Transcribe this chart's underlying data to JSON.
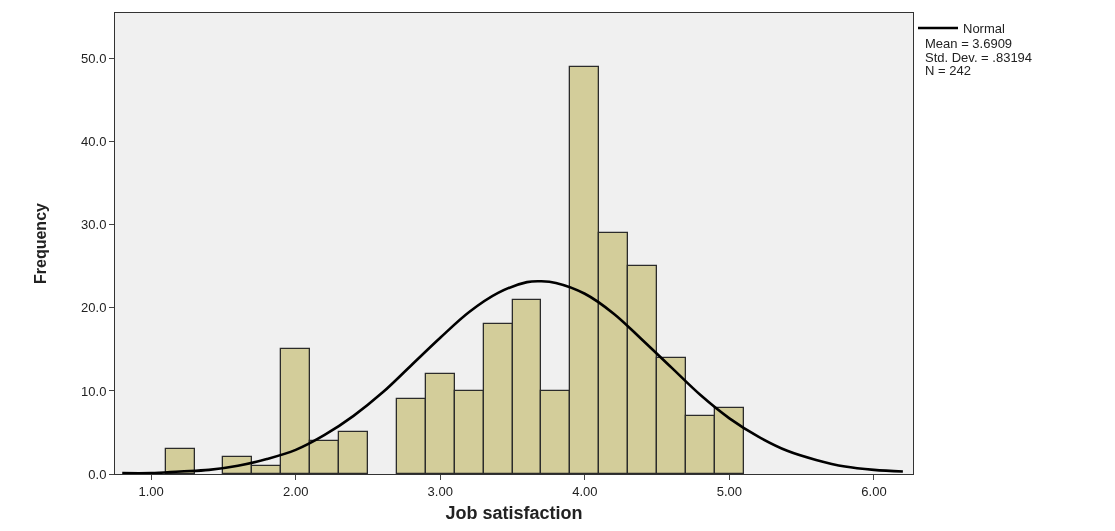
{
  "chart_data": {
    "type": "histogram",
    "xlabel": "Job satisfaction",
    "ylabel": "Frequency",
    "bins": [
      1.1,
      1.3,
      1.5,
      1.7,
      1.9,
      2.1,
      2.3,
      2.5,
      2.7,
      2.9,
      3.1,
      3.3,
      3.5,
      3.7,
      3.9,
      4.1,
      4.3,
      4.5,
      4.7,
      4.9,
      5.1
    ],
    "series": [
      {
        "color": "#d3cd9a",
        "values": [
          3,
          0,
          2,
          1,
          15,
          4,
          5,
          0,
          9,
          12,
          10,
          18,
          21,
          10,
          49,
          29,
          25,
          14,
          7,
          8
        ]
      },
      {
        "type": "line",
        "name": "Normal",
        "color": "#000000",
        "x": [
          0.8,
          1.0,
          1.2,
          1.4,
          1.6,
          1.8,
          2.0,
          2.2,
          2.4,
          2.6,
          2.8,
          3.0,
          3.2,
          3.4,
          3.6,
          3.7,
          3.8,
          4.0,
          4.2,
          4.4,
          4.6,
          4.8,
          5.0,
          5.2,
          5.4,
          5.6,
          5.8,
          6.0,
          6.2
        ],
        "values": [
          0.1,
          0.1,
          0.3,
          0.5,
          1.0,
          1.8,
          2.9,
          4.7,
          7.0,
          9.8,
          13.1,
          16.4,
          19.5,
          21.8,
          23.1,
          23.2,
          23.0,
          21.7,
          19.3,
          16.1,
          12.8,
          9.5,
          6.7,
          4.5,
          2.8,
          1.7,
          0.9,
          0.5,
          0.3
        ]
      }
    ],
    "annotations": [
      "Mean = 3.6909",
      "Std. Dev. = .83194",
      "N = 242"
    ],
    "xlim": [
      0.75,
      6.27
    ],
    "xticks": [
      {
        "value": 1,
        "label": "1.00"
      },
      {
        "value": 2,
        "label": "2.00"
      },
      {
        "value": 3,
        "label": "3.00"
      },
      {
        "value": 4,
        "label": "4.00"
      },
      {
        "value": 5,
        "label": "5.00"
      },
      {
        "value": 6,
        "label": "6.00"
      }
    ],
    "ylim": [
      0,
      55.5
    ],
    "yticks": [
      {
        "value": 0,
        "label": "0.0"
      },
      {
        "value": 10,
        "label": "10.0"
      },
      {
        "value": 20,
        "label": "20.0"
      },
      {
        "value": 30,
        "label": "30.0"
      },
      {
        "value": 40,
        "label": "40.0"
      },
      {
        "value": 50,
        "label": "50.0"
      }
    ],
    "grid": false,
    "legend": "top right",
    "marker": "none"
  }
}
